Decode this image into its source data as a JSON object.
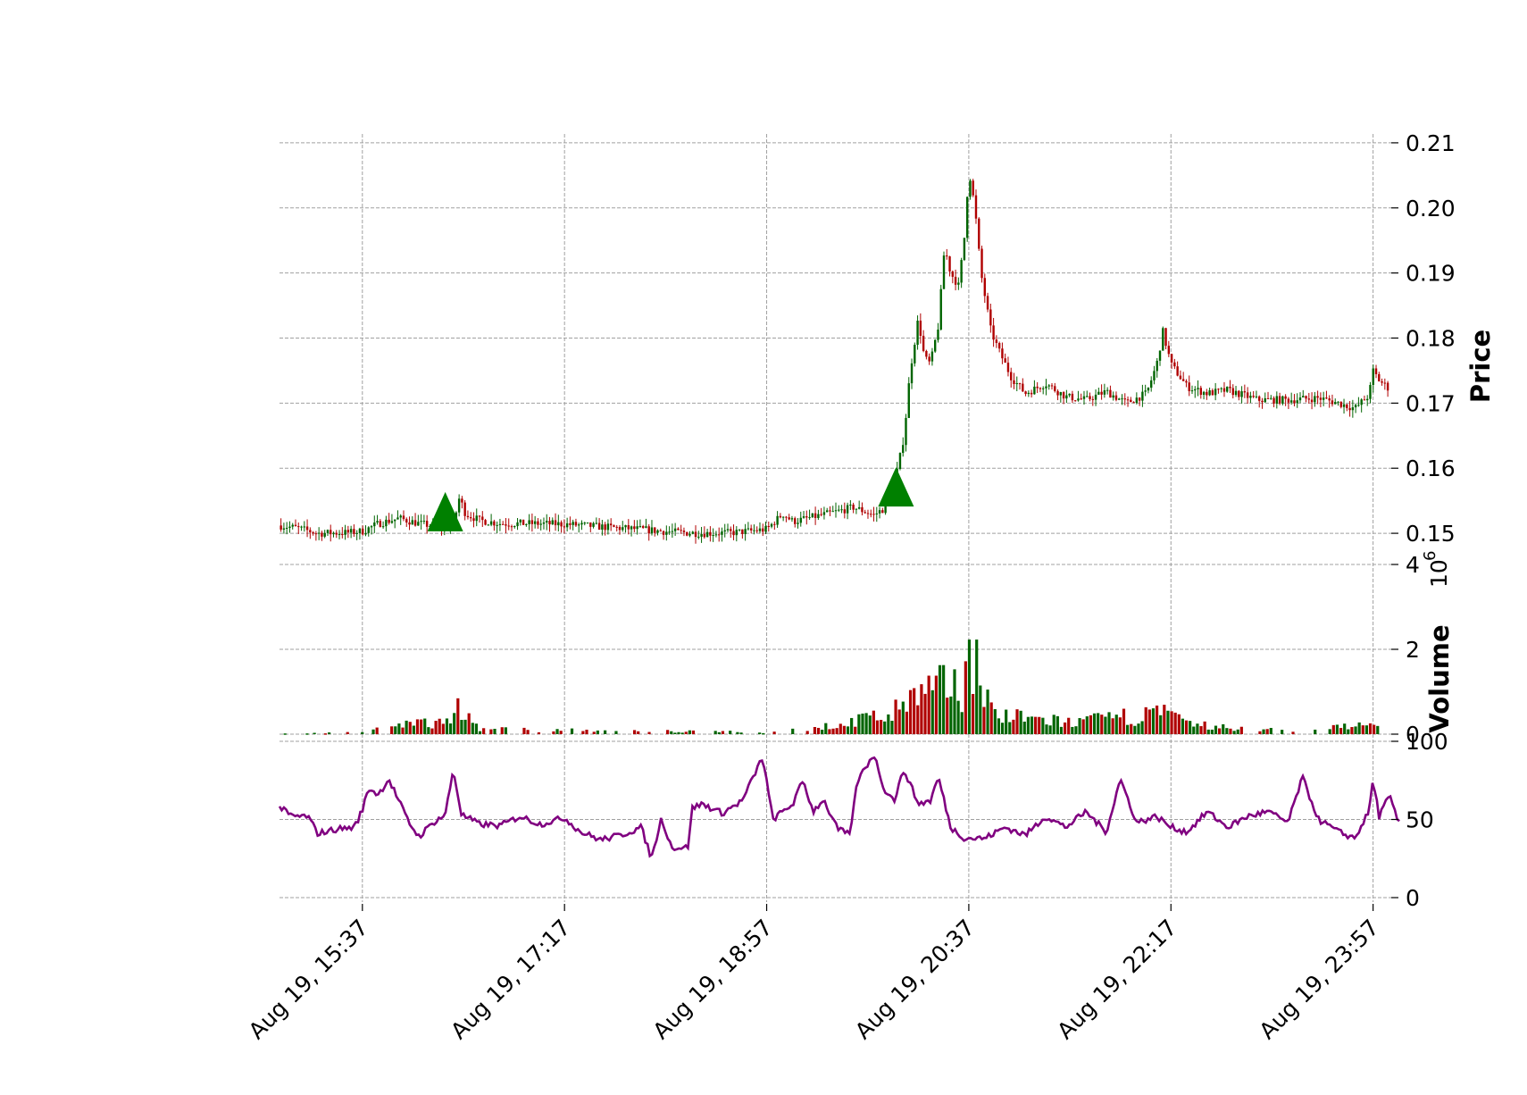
{
  "chart_data": {
    "type": "candlestick",
    "title": "",
    "colors": {
      "up": "#006400",
      "down": "#b00000",
      "rsi": "#800080",
      "marker": "#008000",
      "grid": "#a0a0a0"
    },
    "x_axis": {
      "range": [
        "Aug 19, 14:56",
        "Aug 19, 24:06"
      ],
      "tick_labels": [
        "Aug 19, 15:37",
        "Aug 19, 17:17",
        "Aug 19, 18:57",
        "Aug 19, 20:37",
        "Aug 19, 22:17",
        "Aug 19, 23:57"
      ],
      "tick_times": [
        "15:37",
        "17:17",
        "18:57",
        "20:37",
        "22:17",
        "23:57"
      ]
    },
    "panels": [
      {
        "name": "price",
        "ylabel": "Price",
        "ylim": [
          0.1496,
          0.2104
        ],
        "ticks": [
          0.15,
          0.16,
          0.17,
          0.18,
          0.19,
          0.2,
          0.21
        ],
        "tick_labels": [
          "0.15",
          "0.16",
          "0.17",
          "0.18",
          "0.19",
          "0.20",
          "0.21"
        ],
        "series_close": [
          [
            "14:56",
            0.1512
          ],
          [
            "15:05",
            0.1508
          ],
          [
            "15:15",
            0.15
          ],
          [
            "15:30",
            0.1501
          ],
          [
            "15:37",
            0.1503
          ],
          [
            "15:45",
            0.1515
          ],
          [
            "15:55",
            0.1523
          ],
          [
            "16:05",
            0.1515
          ],
          [
            "16:15",
            0.151
          ],
          [
            "16:22",
            0.1513
          ],
          [
            "16:25",
            0.1555
          ],
          [
            "16:28",
            0.153
          ],
          [
            "16:35",
            0.152
          ],
          [
            "16:45",
            0.1515
          ],
          [
            "17:00",
            0.1515
          ],
          [
            "17:17",
            0.1514
          ],
          [
            "17:35",
            0.151
          ],
          [
            "17:55",
            0.1506
          ],
          [
            "18:10",
            0.1502
          ],
          [
            "18:25",
            0.15
          ],
          [
            "18:40",
            0.1501
          ],
          [
            "18:57",
            0.1506
          ],
          [
            "19:05",
            0.153
          ],
          [
            "19:10",
            0.1518
          ],
          [
            "19:20",
            0.1525
          ],
          [
            "19:30",
            0.1532
          ],
          [
            "19:40",
            0.154
          ],
          [
            "19:50",
            0.1528
          ],
          [
            "19:55",
            0.1538
          ],
          [
            "20:00",
            0.157
          ],
          [
            "20:05",
            0.165
          ],
          [
            "20:08",
            0.175
          ],
          [
            "20:12",
            0.183
          ],
          [
            "20:15",
            0.177
          ],
          [
            "20:18",
            0.176
          ],
          [
            "20:22",
            0.182
          ],
          [
            "20:25",
            0.194
          ],
          [
            "20:28",
            0.19
          ],
          [
            "20:32",
            0.188
          ],
          [
            "20:35",
            0.196
          ],
          [
            "20:37",
            0.206
          ],
          [
            "20:40",
            0.2
          ],
          [
            "20:43",
            0.19
          ],
          [
            "20:48",
            0.181
          ],
          [
            "20:52",
            0.178
          ],
          [
            "20:58",
            0.174
          ],
          [
            "21:05",
            0.1715
          ],
          [
            "21:15",
            0.173
          ],
          [
            "21:25",
            0.171
          ],
          [
            "21:35",
            0.1705
          ],
          [
            "21:45",
            0.1718
          ],
          [
            "21:55",
            0.17
          ],
          [
            "22:05",
            0.1715
          ],
          [
            "22:10",
            0.176
          ],
          [
            "22:13",
            0.181
          ],
          [
            "22:17",
            0.176
          ],
          [
            "22:25",
            0.1725
          ],
          [
            "22:35",
            0.1715
          ],
          [
            "22:45",
            0.172
          ],
          [
            "23:00",
            0.1705
          ],
          [
            "23:15",
            0.1705
          ],
          [
            "23:30",
            0.1708
          ],
          [
            "23:40",
            0.17
          ],
          [
            "23:48",
            0.1692
          ],
          [
            "23:55",
            0.1712
          ],
          [
            "23:57",
            0.175
          ],
          [
            "24:00",
            0.1735
          ],
          [
            "24:05",
            0.1722
          ]
        ],
        "markers": [
          {
            "time": "16:18",
            "price": 0.1525,
            "shape": "triangle-up"
          },
          {
            "time": "20:01",
            "price": 0.1563,
            "shape": "triangle-up"
          }
        ]
      },
      {
        "name": "volume",
        "ylabel": "Volume",
        "exponent_label": "10",
        "exponent_power": "6",
        "ylim": [
          0,
          4
        ],
        "ticks": [
          0,
          2,
          4
        ],
        "tick_labels": [
          "0",
          "2",
          "4"
        ],
        "peaks": [
          [
            "14:56",
            0.02
          ],
          [
            "15:37",
            0.08
          ],
          [
            "16:20",
            0.45
          ],
          [
            "16:25",
            0.85
          ],
          [
            "16:35",
            0.15
          ],
          [
            "17:35",
            0.1
          ],
          [
            "18:57",
            0.06
          ],
          [
            "19:30",
            0.25
          ],
          [
            "20:00",
            0.65
          ],
          [
            "20:15",
            1.3
          ],
          [
            "20:25",
            1.4
          ],
          [
            "20:35",
            1.5
          ],
          [
            "20:37",
            2.85
          ],
          [
            "20:42",
            1.95
          ],
          [
            "20:50",
            0.55
          ],
          [
            "21:30",
            0.35
          ],
          [
            "22:13",
            0.65
          ],
          [
            "22:25",
            0.3
          ],
          [
            "23:00",
            0.12
          ],
          [
            "23:57",
            0.25
          ],
          [
            "24:05",
            0.1
          ]
        ]
      },
      {
        "name": "rsi",
        "ylabel": "",
        "ylim": [
          0,
          100
        ],
        "ticks": [
          0,
          50,
          100
        ],
        "tick_labels": [
          "0",
          "50",
          "100"
        ],
        "values": [
          [
            "14:56",
            58
          ],
          [
            "15:02",
            52
          ],
          [
            "15:10",
            52
          ],
          [
            "15:15",
            41
          ],
          [
            "15:25",
            44
          ],
          [
            "15:33",
            45
          ],
          [
            "15:37",
            56
          ],
          [
            "15:40",
            70
          ],
          [
            "15:45",
            66
          ],
          [
            "15:50",
            76
          ],
          [
            "15:55",
            62
          ],
          [
            "16:00",
            48
          ],
          [
            "16:05",
            39
          ],
          [
            "16:12",
            48
          ],
          [
            "16:18",
            53
          ],
          [
            "16:22",
            82
          ],
          [
            "16:26",
            53
          ],
          [
            "16:35",
            47
          ],
          [
            "16:45",
            46
          ],
          [
            "16:55",
            52
          ],
          [
            "17:05",
            47
          ],
          [
            "17:17",
            51
          ],
          [
            "17:25",
            42
          ],
          [
            "17:35",
            37
          ],
          [
            "17:45",
            40
          ],
          [
            "17:55",
            45
          ],
          [
            "18:00",
            25
          ],
          [
            "18:05",
            51
          ],
          [
            "18:10",
            32
          ],
          [
            "18:18",
            32
          ],
          [
            "18:20",
            57
          ],
          [
            "18:25",
            60
          ],
          [
            "18:35",
            54
          ],
          [
            "18:45",
            62
          ],
          [
            "18:55",
            90
          ],
          [
            "19:00",
            50
          ],
          [
            "19:10",
            60
          ],
          [
            "19:15",
            75
          ],
          [
            "19:20",
            55
          ],
          [
            "19:25",
            63
          ],
          [
            "19:32",
            44
          ],
          [
            "19:38",
            40
          ],
          [
            "19:42",
            75
          ],
          [
            "19:50",
            92
          ],
          [
            "19:55",
            70
          ],
          [
            "20:00",
            62
          ],
          [
            "20:05",
            82
          ],
          [
            "20:12",
            60
          ],
          [
            "20:18",
            62
          ],
          [
            "20:22",
            77
          ],
          [
            "20:28",
            45
          ],
          [
            "20:35",
            38
          ],
          [
            "20:45",
            38
          ],
          [
            "20:55",
            45
          ],
          [
            "21:05",
            40
          ],
          [
            "21:15",
            52
          ],
          [
            "21:25",
            45
          ],
          [
            "21:35",
            55
          ],
          [
            "21:45",
            42
          ],
          [
            "21:52",
            76
          ],
          [
            "22:00",
            48
          ],
          [
            "22:10",
            52
          ],
          [
            "22:17",
            45
          ],
          [
            "22:25",
            42
          ],
          [
            "22:35",
            55
          ],
          [
            "22:45",
            45
          ],
          [
            "22:55",
            52
          ],
          [
            "23:05",
            55
          ],
          [
            "23:15",
            48
          ],
          [
            "23:22",
            77
          ],
          [
            "23:30",
            50
          ],
          [
            "23:40",
            42
          ],
          [
            "23:48",
            38
          ],
          [
            "23:55",
            55
          ],
          [
            "23:57",
            76
          ],
          [
            "24:00",
            52
          ],
          [
            "24:05",
            65
          ],
          [
            "24:10",
            47
          ]
        ]
      }
    ]
  }
}
